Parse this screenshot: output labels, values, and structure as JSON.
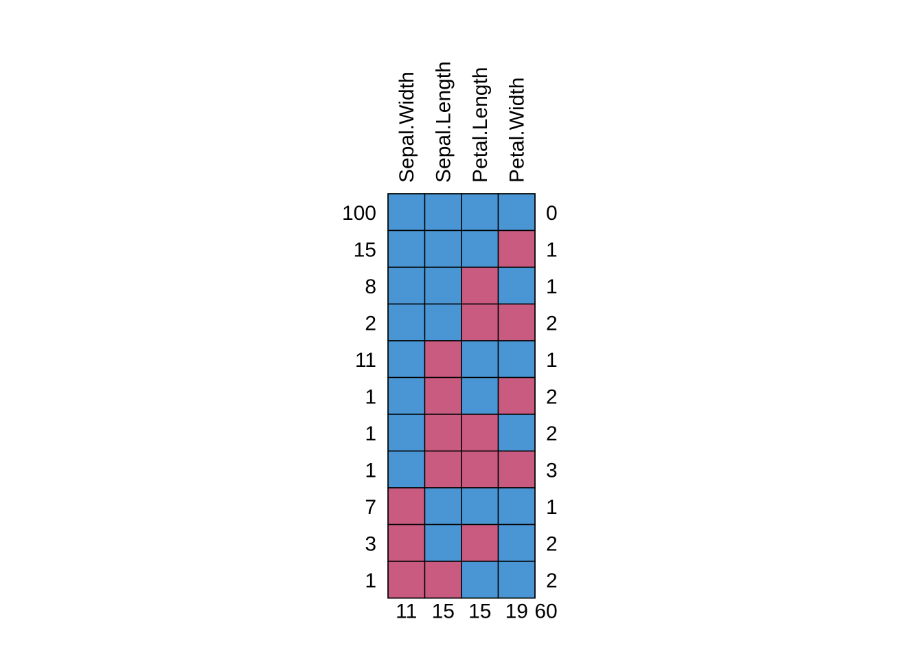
{
  "chart_data": {
    "type": "heatmap",
    "columns": [
      "Sepal.Width",
      "Sepal.Length",
      "Petal.Length",
      "Petal.Width"
    ],
    "rows": [
      {
        "count": "100",
        "missing_in_row": "0",
        "pattern": [
          1,
          1,
          1,
          1
        ]
      },
      {
        "count": "15",
        "missing_in_row": "1",
        "pattern": [
          1,
          1,
          1,
          0
        ]
      },
      {
        "count": "8",
        "missing_in_row": "1",
        "pattern": [
          1,
          1,
          0,
          1
        ]
      },
      {
        "count": "2",
        "missing_in_row": "2",
        "pattern": [
          1,
          1,
          0,
          0
        ]
      },
      {
        "count": "11",
        "missing_in_row": "1",
        "pattern": [
          1,
          0,
          1,
          1
        ]
      },
      {
        "count": "1",
        "missing_in_row": "2",
        "pattern": [
          1,
          0,
          1,
          0
        ]
      },
      {
        "count": "1",
        "missing_in_row": "2",
        "pattern": [
          1,
          0,
          0,
          1
        ]
      },
      {
        "count": "1",
        "missing_in_row": "3",
        "pattern": [
          1,
          0,
          0,
          0
        ]
      },
      {
        "count": "7",
        "missing_in_row": "1",
        "pattern": [
          0,
          1,
          1,
          1
        ]
      },
      {
        "count": "3",
        "missing_in_row": "2",
        "pattern": [
          0,
          1,
          0,
          1
        ]
      },
      {
        "count": "1",
        "missing_in_row": "2",
        "pattern": [
          0,
          0,
          1,
          1
        ]
      }
    ],
    "column_missing_totals": [
      "11",
      "15",
      "15",
      "19"
    ],
    "total_missing": "60",
    "colors": {
      "observed": "#4A96D4",
      "missing": "#C95B80",
      "border": "#000000"
    },
    "legend": "none",
    "grid": true
  }
}
